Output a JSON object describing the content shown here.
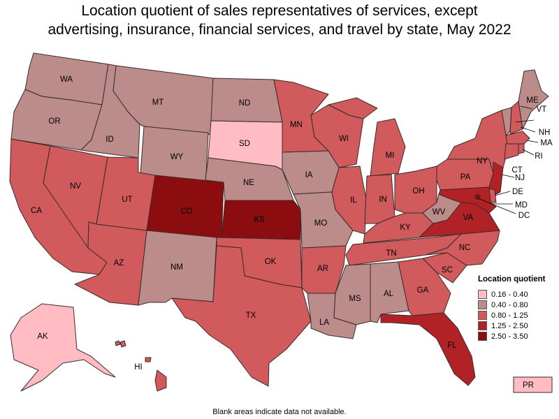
{
  "title": {
    "line1": "Location quotient of sales representatives of services, except",
    "line2": "advertising, insurance, financial services, and travel by state, May 2022"
  },
  "legend": {
    "title": "Location quotient",
    "items": [
      {
        "label": "0.16 - 0.40",
        "color": "#ffbcc3"
      },
      {
        "label": "0.40 - 0.80",
        "color": "#bb8c8a"
      },
      {
        "label": "0.80 - 1.25",
        "color": "#d05a5c"
      },
      {
        "label": "1.25 - 2.50",
        "color": "#b12226"
      },
      {
        "label": "2.50 - 3.50",
        "color": "#8b0d10"
      }
    ]
  },
  "footnote": "Blank areas indicate data not available.",
  "states": {
    "WA": "0.40 - 0.80",
    "OR": "0.40 - 0.80",
    "ID": "0.40 - 0.80",
    "MT": "0.40 - 0.80",
    "WY": "0.40 - 0.80",
    "ND": "0.40 - 0.80",
    "SD": "0.16 - 0.40",
    "NE": "0.40 - 0.80",
    "IA": "0.40 - 0.80",
    "MO": "0.40 - 0.80",
    "NM": "0.40 - 0.80",
    "MS": "0.40 - 0.80",
    "AL": "0.40 - 0.80",
    "LA": "0.40 - 0.80",
    "WV": "0.40 - 0.80",
    "ME": "0.40 - 0.80",
    "VT": "0.40 - 0.80",
    "AK": "0.16 - 0.40",
    "PR": "0.16 - 0.40",
    "CA": "0.80 - 1.25",
    "NV": "0.80 - 1.25",
    "UT": "0.80 - 1.25",
    "AZ": "0.80 - 1.25",
    "TX": "0.80 - 1.25",
    "OK": "0.80 - 1.25",
    "AR": "0.80 - 1.25",
    "MN": "0.80 - 1.25",
    "WI": "0.80 - 1.25",
    "MI": "0.80 - 1.25",
    "IL": "0.80 - 1.25",
    "IN": "0.80 - 1.25",
    "OH": "0.80 - 1.25",
    "KY": "0.80 - 1.25",
    "TN": "0.80 - 1.25",
    "GA": "0.80 - 1.25",
    "SC": "0.80 - 1.25",
    "NC": "0.80 - 1.25",
    "PA": "0.80 - 1.25",
    "NY": "0.80 - 1.25",
    "NH": "0.80 - 1.25",
    "MA": "0.80 - 1.25",
    "RI": "0.80 - 1.25",
    "CT": "0.80 - 1.25",
    "HI": "0.80 - 1.25",
    "DE": "0.80 - 1.25",
    "VA": "1.25 - 2.50",
    "FL": "1.25 - 2.50",
    "NJ": "1.25 - 2.50",
    "MD": "1.25 - 2.50",
    "CO": "2.50 - 3.50",
    "KS": "2.50 - 3.50",
    "DC": "2.50 - 3.50"
  }
}
